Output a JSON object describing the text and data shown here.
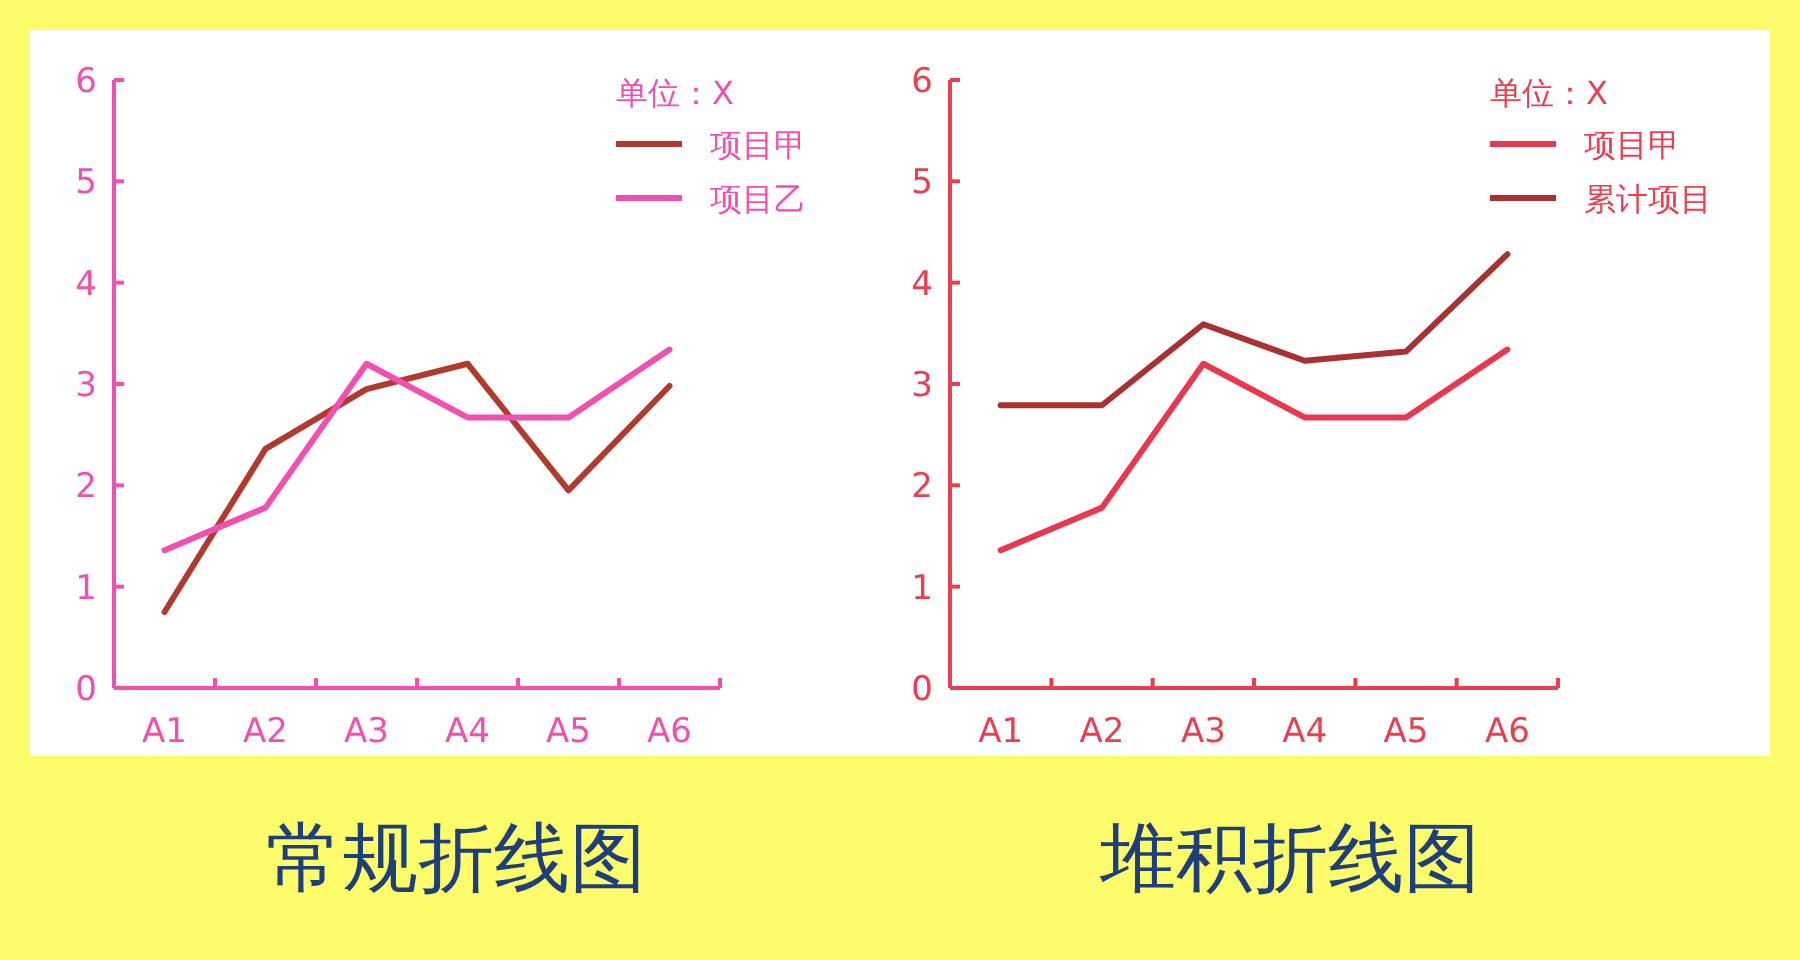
{
  "chart_data": [
    {
      "type": "line",
      "title": "常规折线图",
      "legend_title": "单位：X",
      "legend": "top right",
      "categories": [
        "A1",
        "A2",
        "A3",
        "A4",
        "A5",
        "A6"
      ],
      "ylim": [
        0,
        6
      ],
      "yticks": [
        0,
        1,
        2,
        3,
        4,
        5,
        6
      ],
      "series": [
        {
          "name": "项目甲",
          "color": "#b03a2e",
          "values": [
            0.75,
            2.36,
            2.95,
            3.2,
            1.95,
            2.98
          ]
        },
        {
          "name": "项目乙",
          "color": "#f050b0",
          "values": [
            1.36,
            1.78,
            3.2,
            2.67,
            2.67,
            3.34
          ]
        }
      ]
    },
    {
      "type": "line",
      "title": "堆积折线图",
      "legend_title": "单位：X",
      "legend": "top right",
      "categories": [
        "A1",
        "A2",
        "A3",
        "A4",
        "A5",
        "A6"
      ],
      "ylim": [
        0,
        6
      ],
      "yticks": [
        0,
        1,
        2,
        3,
        4,
        5,
        6
      ],
      "series": [
        {
          "name": "项目甲",
          "color": "#e8384f",
          "values": [
            1.36,
            1.78,
            3.2,
            2.67,
            2.67,
            3.34
          ]
        },
        {
          "name": "累计项目",
          "color": "#a83232",
          "values": [
            2.79,
            2.79,
            3.59,
            3.23,
            3.32,
            4.28
          ]
        }
      ]
    }
  ]
}
